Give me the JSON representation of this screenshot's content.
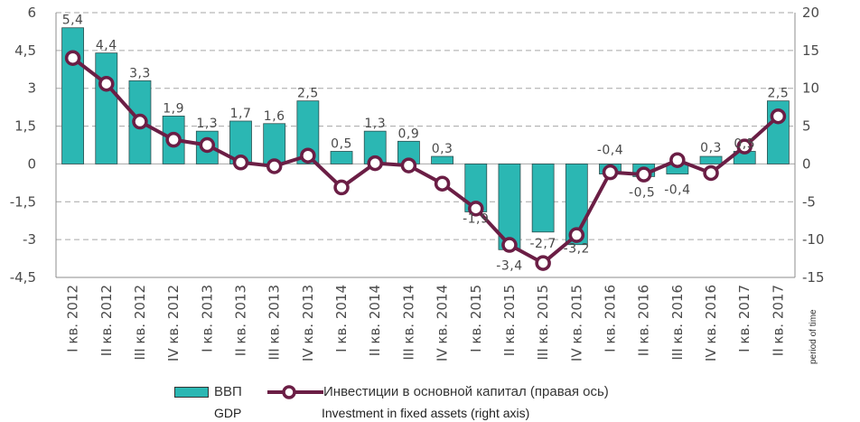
{
  "chart_data": {
    "type": "bar",
    "categories": [
      "I кв. 2012",
      "II кв. 2012",
      "III кв. 2012",
      "IV кв. 2012",
      "I кв. 2013",
      "II кв. 2013",
      "III кв. 2013",
      "IV кв. 2013",
      "I кв. 2014",
      "II кв. 2014",
      "III кв. 2014",
      "IV кв. 2014",
      "I кв. 2015",
      "II кв. 2015",
      "III кв. 2015",
      "IV кв. 2015",
      "I кв. 2016",
      "II кв. 2016",
      "III кв. 2016",
      "IV кв. 2016",
      "I кв. 2017",
      "II кв. 2017"
    ],
    "series": [
      {
        "name": "ВВП",
        "name_en": "GDP",
        "type": "bar",
        "axis": "left",
        "color": "#2bb7b3",
        "values": [
          5.4,
          4.4,
          3.3,
          1.9,
          1.3,
          1.7,
          1.6,
          2.5,
          0.5,
          1.3,
          0.9,
          0.3,
          -1.9,
          -3.4,
          -2.7,
          -3.2,
          -0.4,
          -0.5,
          -0.4,
          0.3,
          0.5,
          2.5
        ],
        "labels": [
          "5,4",
          "4,4",
          "3,3",
          "1,9",
          "1,3",
          "1,7",
          "1,6",
          "2,5",
          "0,5",
          "1,3",
          "0,9",
          "0,3",
          "-1,9",
          "-3,4",
          "-2,7",
          "-3,2",
          "-0,4",
          "-0,5",
          "-0,4",
          "0,3",
          "0,5",
          "2,5"
        ]
      },
      {
        "name": "Инвестиции в основной капитал (правая ось)",
        "name_en": "Investment in fixed assets (right axis)",
        "type": "line",
        "axis": "right",
        "color": "#6b1e45",
        "values": [
          14.0,
          10.6,
          5.6,
          3.2,
          2.5,
          0.2,
          -0.3,
          1.1,
          -3.1,
          0.1,
          -0.2,
          -2.6,
          -5.9,
          -10.7,
          -13.1,
          -9.4,
          -1.1,
          -1.4,
          0.5,
          -1.2,
          2.3,
          6.3
        ]
      }
    ],
    "y_left": {
      "min": -4.5,
      "max": 6,
      "ticks": [
        -4.5,
        -3,
        -1.5,
        0,
        1.5,
        3,
        4.5,
        6
      ],
      "tick_labels": [
        "-4,5",
        "-3",
        "-1,5",
        "0",
        "1,5",
        "3",
        "4,5",
        "6"
      ]
    },
    "y_right": {
      "min": -15,
      "max": 20,
      "ticks": [
        -15,
        -10,
        -5,
        0,
        5,
        10,
        15,
        20
      ],
      "tick_labels": [
        "-15",
        "-10",
        "-5",
        "0",
        "5",
        "10",
        "15",
        "20"
      ]
    },
    "x_axis_side_label": "period of time",
    "grid": "horizontal dashed",
    "legend": "bottom"
  }
}
